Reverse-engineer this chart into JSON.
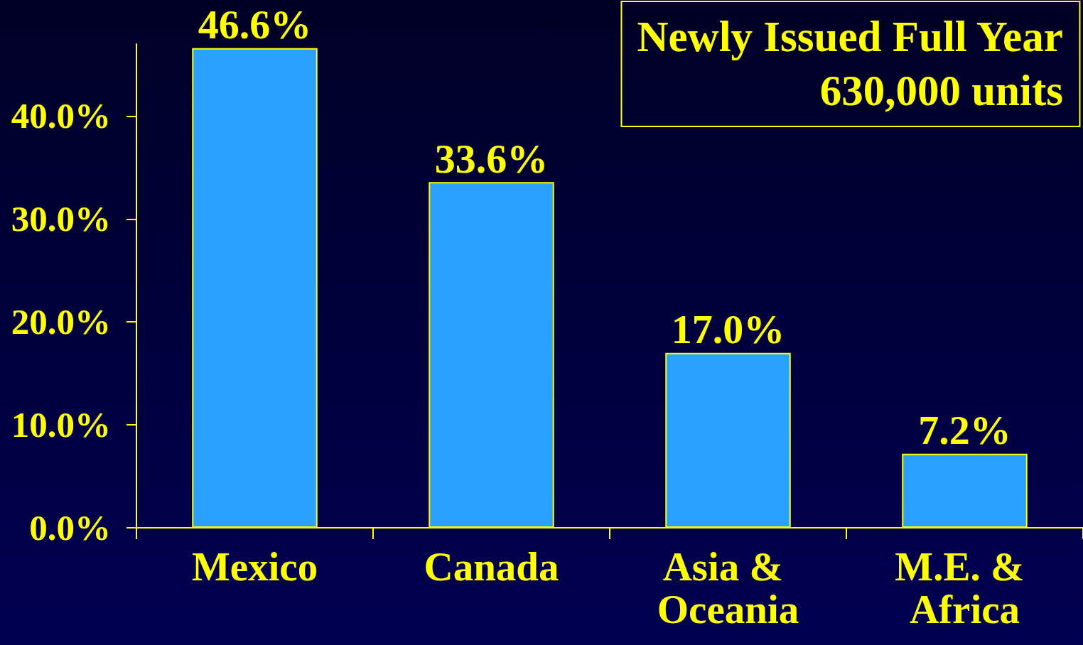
{
  "chart_data": {
    "type": "bar",
    "title": "Newly Issued Full Year",
    "subtitle": "630,000 units",
    "categories": [
      "Mexico",
      "Canada",
      "Asia & Oceania",
      "M.E. & Africa"
    ],
    "values": [
      46.6,
      33.6,
      17.0,
      7.2
    ],
    "value_labels": [
      "46.6%",
      "33.6%",
      "17.0%",
      "7.2%"
    ],
    "color": "#2ba1ff",
    "ylim": [
      0,
      47
    ],
    "yticks": [
      {
        "value": 0,
        "label": "0.0%"
      },
      {
        "value": 10,
        "label": "10.0%"
      },
      {
        "value": 20,
        "label": "20.0%"
      },
      {
        "value": 30,
        "label": "30.0%"
      },
      {
        "value": 40,
        "label": "40.0%"
      }
    ],
    "grid": false
  }
}
